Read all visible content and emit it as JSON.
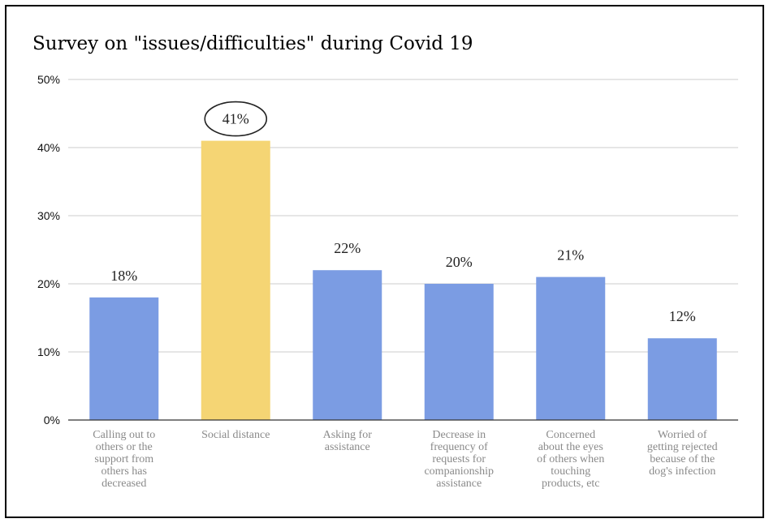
{
  "chart_data": {
    "type": "bar",
    "title": "Survey on \"issues/difficulties\" during Covid 19",
    "xlabel": "",
    "ylabel": "",
    "ylim": [
      0,
      50
    ],
    "y_ticks": [
      "0%",
      "10%",
      "20%",
      "30%",
      "40%",
      "50%"
    ],
    "grid": true,
    "categories": [
      [
        "Calling out to",
        "others or the",
        "support from",
        "others has",
        "decreased"
      ],
      [
        "Social distance"
      ],
      [
        "Asking for",
        "assistance"
      ],
      [
        "Decrease in",
        "frequency of",
        "requests for",
        "companionship",
        "assistance"
      ],
      [
        "Concerned",
        "about the eyes",
        "of others when",
        "touching",
        "products, etc"
      ],
      [
        "Worried of",
        "getting rejected",
        "because of the",
        "dog's infection"
      ]
    ],
    "values": [
      18,
      41,
      22,
      20,
      21,
      12
    ],
    "data_labels": [
      "18%",
      "41%",
      "22%",
      "20%",
      "21%",
      "12%"
    ],
    "colors": [
      "#7b9ce3",
      "#f5d574",
      "#7b9ce3",
      "#7b9ce3",
      "#7b9ce3",
      "#7b9ce3"
    ],
    "highlight_index": 1
  }
}
